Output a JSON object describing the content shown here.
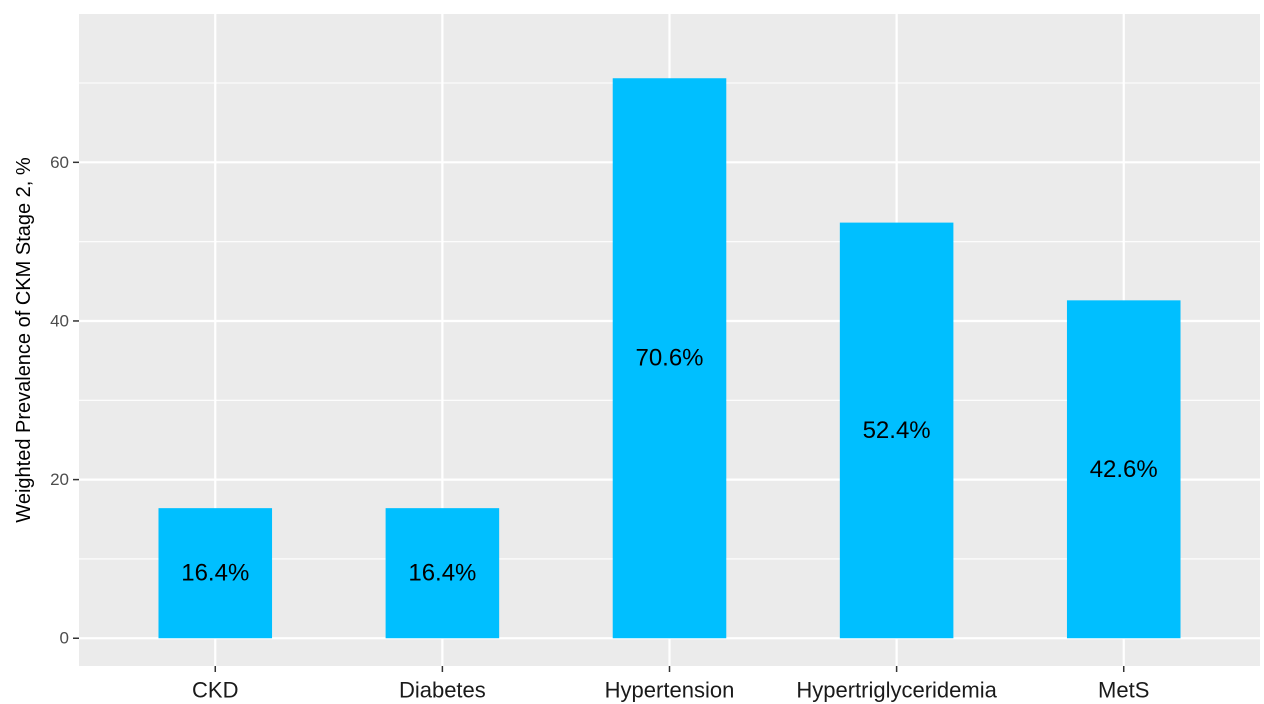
{
  "chart_data": {
    "type": "bar",
    "title": "",
    "xlabel": "",
    "ylabel": "Weighted Prevalence of CKM Stage 2, %",
    "categories": [
      "CKD",
      "Diabetes",
      "Hypertension",
      "Hypertriglyceridemia",
      "MetS"
    ],
    "values": [
      16.4,
      16.4,
      70.6,
      52.4,
      42.6
    ],
    "data_labels": [
      "16.4%",
      "16.4%",
      "70.6%",
      "52.4%",
      "42.6%"
    ],
    "ylim": [
      -3.5,
      78.7
    ],
    "yticks": [
      0,
      20,
      40,
      60
    ],
    "ytick_labels": [
      "0",
      "20",
      "40",
      "60"
    ],
    "grid": true,
    "legend": "none",
    "colors": {
      "bar": "#00BFFF",
      "panel": "#EBEBEB",
      "grid": "#FFFFFF"
    }
  }
}
